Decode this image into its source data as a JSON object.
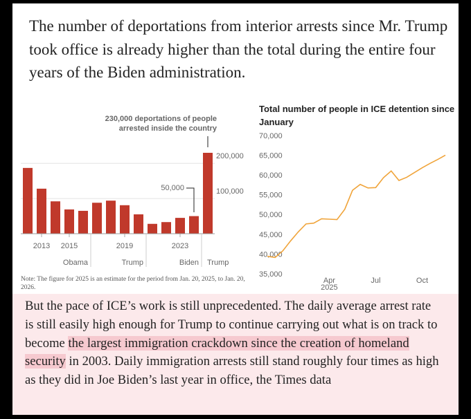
{
  "headline": "The number of deportations from interior arrests since Mr. Trump took office is already higher than the total during the entire four years of the Biden administration.",
  "chart_data": [
    {
      "type": "bar",
      "categories": [
        null,
        "2013",
        null,
        "2015",
        null,
        null,
        null,
        "2019",
        null,
        null,
        null,
        "2023",
        null,
        null
      ],
      "values": [
        187000,
        128000,
        92000,
        69000,
        65000,
        88000,
        94000,
        81000,
        55000,
        28000,
        33000,
        45000,
        50000,
        230000
      ],
      "color": "#c0392b",
      "ylim": [
        0,
        255000
      ],
      "yticks": [
        {
          "value": 100000,
          "label": "100,000"
        },
        {
          "value": 200000,
          "label": "200,000"
        }
      ],
      "grid": true,
      "annotations": [
        "230,000 deportations of people",
        "arrested inside the country",
        "50,000"
      ],
      "periods": [
        "Obama",
        "Trump",
        "Biden",
        "Trump"
      ]
    },
    {
      "type": "line",
      "title": "Total number of people in ICE detention since January",
      "categories": [
        null,
        null,
        null,
        null,
        null,
        null,
        null,
        null,
        "Apr",
        null,
        null,
        null,
        null,
        null,
        "Jul",
        null,
        null,
        null,
        null,
        null,
        "Oct",
        null,
        null,
        null
      ],
      "x_year": "2025",
      "values": [
        39600,
        39300,
        41000,
        43500,
        45800,
        47800,
        48000,
        49100,
        49000,
        48900,
        51500,
        56300,
        57800,
        56900,
        57000,
        59500,
        61200,
        58800,
        59600,
        60800,
        62000,
        63100,
        64100,
        65200
      ],
      "color": "#f0a43a",
      "ylim": [
        35000,
        70000
      ],
      "yticks": [
        {
          "value": 35000,
          "label": "35,000"
        },
        {
          "value": 40000,
          "label": "40,000"
        },
        {
          "value": 45000,
          "label": "45,000"
        },
        {
          "value": 50000,
          "label": "50,000"
        },
        {
          "value": 55000,
          "label": "55,000"
        },
        {
          "value": 60000,
          "label": "60,000"
        },
        {
          "value": 65000,
          "label": "65,000"
        },
        {
          "value": 70000,
          "label": "70,000"
        }
      ]
    }
  ],
  "note": "Note: The figure for 2025 is an estimate for the period from Jan. 20, 2025, to Jan. 20, 2026.",
  "paragraph": {
    "before": "But the pace of ICE’s work is still unprecedented. The daily average arrest rate is still easily high enough for Trump to continue carrying out what is on track to become ",
    "highlight": "the largest immigration crackdown since the creation of homeland security",
    "after": " in 2003. Daily immigration arrests still stand roughly four times as high as they did in Joe Biden’s last year in office, the Times data"
  }
}
